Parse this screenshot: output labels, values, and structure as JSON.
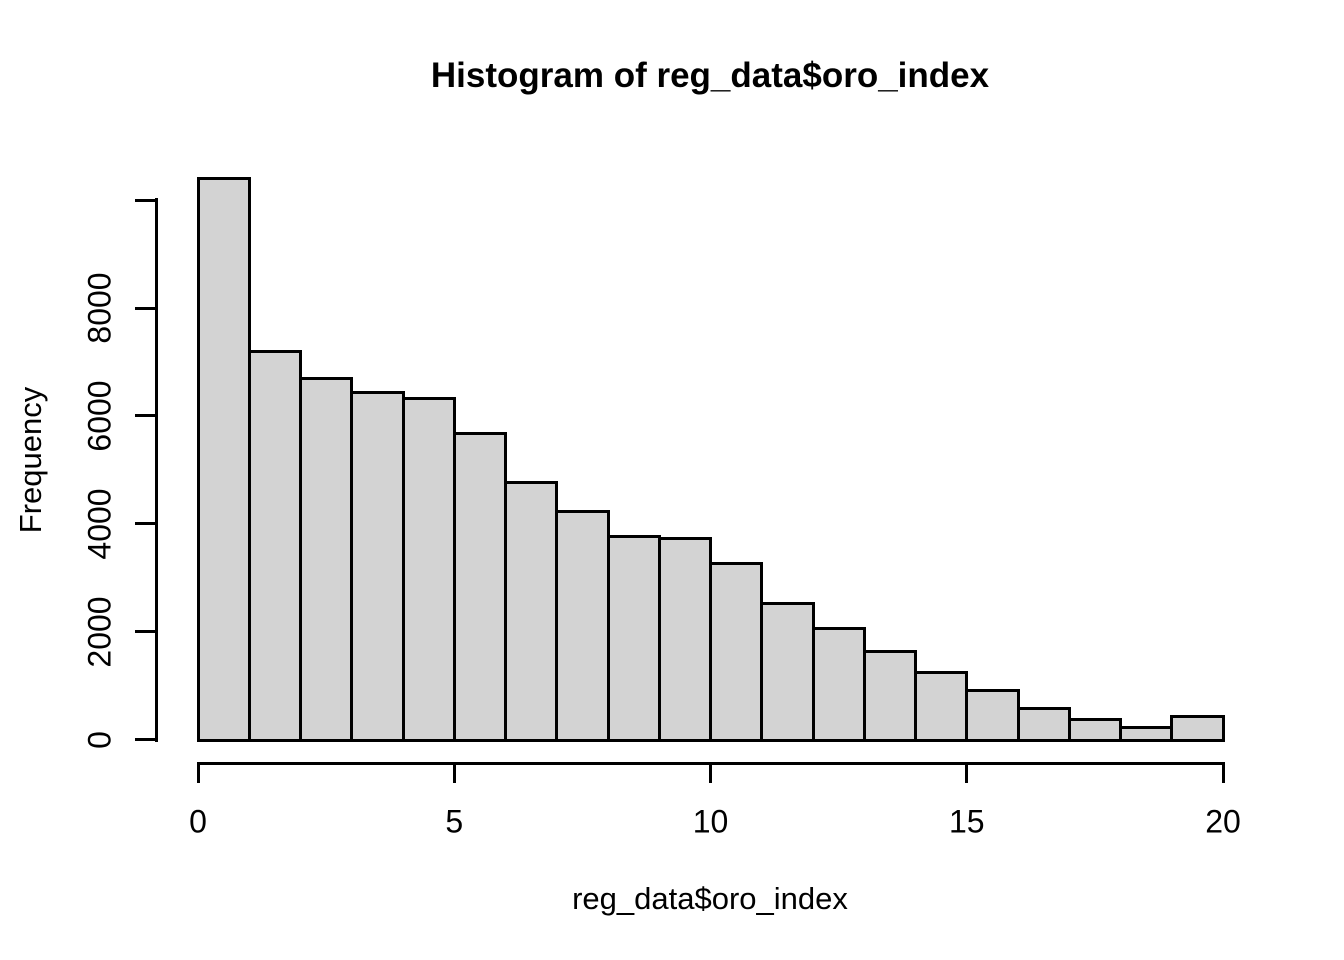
{
  "title": "Histogram of reg_data$oro_index",
  "colors": {
    "background": "#ffffff",
    "bar_fill": "#d3d3d3",
    "bar_border": "#000000",
    "axis": "#000000",
    "text": "#000000"
  },
  "chart_data": {
    "type": "bar",
    "subtype": "histogram",
    "title": "Histogram of reg_data$oro_index",
    "xlabel": "reg_data$oro_index",
    "ylabel": "Frequency",
    "bin_edges": [
      0,
      1,
      2,
      3,
      4,
      5,
      6,
      7,
      8,
      9,
      10,
      11,
      12,
      13,
      14,
      15,
      16,
      17,
      18,
      19,
      20
    ],
    "values": [
      10400,
      7200,
      6700,
      6430,
      6320,
      5670,
      4760,
      4220,
      3760,
      3720,
      3270,
      2530,
      2050,
      1640,
      1250,
      900,
      570,
      380,
      230,
      420
    ],
    "x_ticks": [
      0,
      5,
      10,
      15,
      20
    ],
    "x_tick_labels": [
      "0",
      "5",
      "10",
      "15",
      "20"
    ],
    "y_ticks": [
      0,
      2000,
      4000,
      6000,
      8000
    ],
    "y_tick_labels": [
      "0",
      "2000",
      "4000",
      "6000",
      "8000"
    ],
    "unlabeled_top_tick": 10000,
    "xlim": [
      0,
      20
    ],
    "ylim": [
      0,
      10000
    ],
    "grid": false,
    "legend_position": null,
    "bar_orientation": "vertical"
  }
}
